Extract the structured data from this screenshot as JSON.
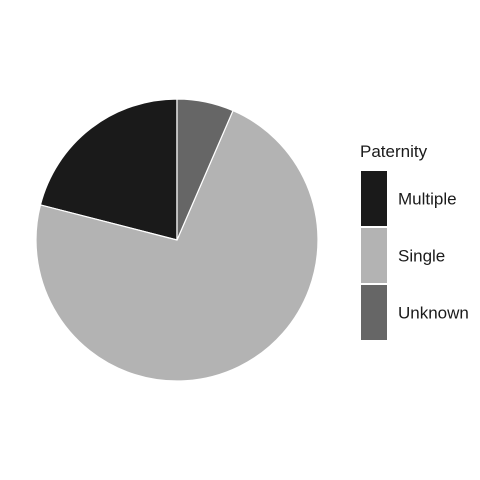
{
  "chart_data": {
    "type": "pie",
    "legend_title": "Paternity",
    "legend_position": "right",
    "slices": [
      {
        "label": "Multiple",
        "value": 0.21,
        "color": "#1a1a1a"
      },
      {
        "label": "Single",
        "value": 0.725,
        "color": "#b3b3b3"
      },
      {
        "label": "Unknown",
        "value": 0.065,
        "color": "#666666"
      }
    ],
    "start": "12 o'clock",
    "direction": "counterclockwise"
  }
}
